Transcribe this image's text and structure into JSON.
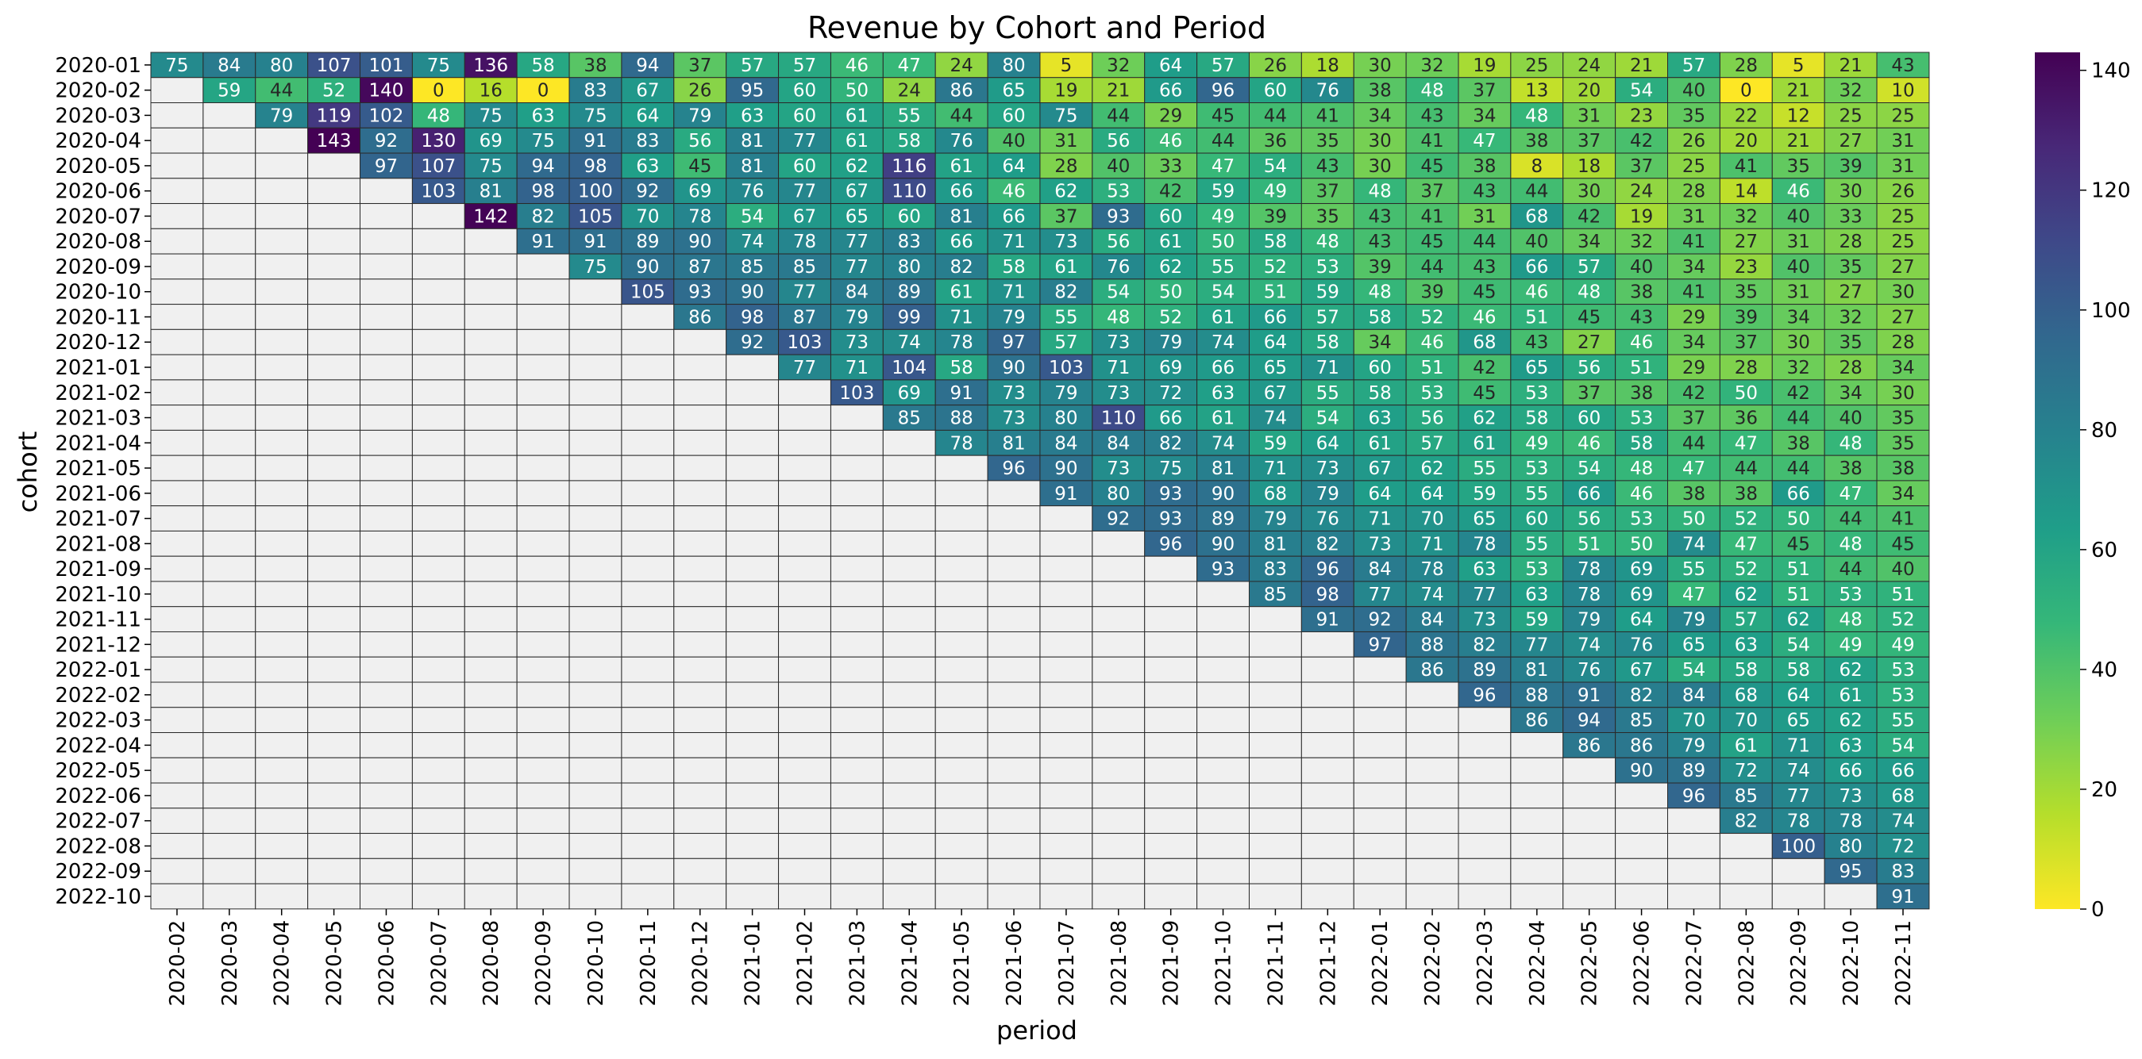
{
  "chart_data": {
    "type": "heatmap",
    "title": "Revenue by Cohort and Period",
    "xlabel": "period",
    "ylabel": "cohort",
    "rows": [
      "2020-01",
      "2020-02",
      "2020-03",
      "2020-04",
      "2020-05",
      "2020-06",
      "2020-07",
      "2020-08",
      "2020-09",
      "2020-10",
      "2020-11",
      "2020-12",
      "2021-01",
      "2021-02",
      "2021-03",
      "2021-04",
      "2021-05",
      "2021-06",
      "2021-07",
      "2021-08",
      "2021-09",
      "2021-10",
      "2021-11",
      "2021-12",
      "2022-01",
      "2022-02",
      "2022-03",
      "2022-04",
      "2022-05",
      "2022-06",
      "2022-07",
      "2022-08",
      "2022-09",
      "2022-10"
    ],
    "columns": [
      "2020-02",
      "2020-03",
      "2020-04",
      "2020-05",
      "2020-06",
      "2020-07",
      "2020-08",
      "2020-09",
      "2020-10",
      "2020-11",
      "2020-12",
      "2021-01",
      "2021-02",
      "2021-03",
      "2021-04",
      "2021-05",
      "2021-06",
      "2021-07",
      "2021-08",
      "2021-09",
      "2021-10",
      "2021-11",
      "2021-12",
      "2022-01",
      "2022-02",
      "2022-03",
      "2022-04",
      "2022-05",
      "2022-06",
      "2022-07",
      "2022-08",
      "2022-09",
      "2022-10",
      "2022-11"
    ],
    "values": [
      [
        75,
        84,
        80,
        107,
        101,
        75,
        136,
        58,
        38,
        94,
        37,
        57,
        57,
        46,
        47,
        24,
        80,
        5,
        32,
        64,
        57,
        26,
        18,
        30,
        32,
        19,
        25,
        24,
        21,
        57,
        28,
        5,
        21,
        43
      ],
      [
        null,
        59,
        44,
        52,
        140,
        0,
        16,
        0,
        83,
        67,
        26,
        95,
        60,
        50,
        24,
        86,
        65,
        19,
        21,
        66,
        96,
        60,
        76,
        38,
        48,
        37,
        13,
        20,
        54,
        40,
        0,
        21,
        32,
        10
      ],
      [
        null,
        null,
        79,
        119,
        102,
        48,
        75,
        63,
        75,
        64,
        79,
        63,
        60,
        61,
        55,
        44,
        60,
        75,
        44,
        29,
        45,
        44,
        41,
        34,
        43,
        34,
        48,
        31,
        23,
        35,
        22,
        12,
        25,
        25
      ],
      [
        null,
        null,
        null,
        143,
        92,
        130,
        69,
        75,
        91,
        83,
        56,
        81,
        77,
        61,
        58,
        76,
        40,
        31,
        56,
        46,
        44,
        36,
        35,
        30,
        41,
        47,
        38,
        37,
        42,
        26,
        20,
        21,
        27,
        31
      ],
      [
        null,
        null,
        null,
        null,
        97,
        107,
        75,
        94,
        98,
        63,
        45,
        81,
        60,
        62,
        116,
        61,
        64,
        28,
        40,
        33,
        47,
        54,
        43,
        30,
        45,
        38,
        8,
        18,
        37,
        25,
        41,
        35,
        39,
        31
      ],
      [
        null,
        null,
        null,
        null,
        null,
        103,
        81,
        98,
        100,
        92,
        69,
        76,
        77,
        67,
        110,
        66,
        46,
        62,
        53,
        42,
        59,
        49,
        37,
        48,
        37,
        43,
        44,
        30,
        24,
        28,
        14,
        46,
        30,
        26
      ],
      [
        null,
        null,
        null,
        null,
        null,
        null,
        142,
        82,
        105,
        70,
        78,
        54,
        67,
        65,
        60,
        81,
        66,
        37,
        93,
        60,
        49,
        39,
        35,
        43,
        41,
        31,
        68,
        42,
        19,
        31,
        32,
        40,
        33,
        25
      ],
      [
        null,
        null,
        null,
        null,
        null,
        null,
        null,
        91,
        91,
        89,
        90,
        74,
        78,
        77,
        83,
        66,
        71,
        73,
        56,
        61,
        50,
        58,
        48,
        43,
        45,
        44,
        40,
        34,
        32,
        41,
        27,
        31,
        28,
        25
      ],
      [
        null,
        null,
        null,
        null,
        null,
        null,
        null,
        null,
        75,
        90,
        87,
        85,
        85,
        77,
        80,
        82,
        58,
        61,
        76,
        62,
        55,
        52,
        53,
        39,
        44,
        43,
        66,
        57,
        40,
        34,
        23,
        40,
        35,
        27
      ],
      [
        null,
        null,
        null,
        null,
        null,
        null,
        null,
        null,
        null,
        105,
        93,
        90,
        77,
        84,
        89,
        61,
        71,
        82,
        54,
        50,
        54,
        51,
        59,
        48,
        39,
        45,
        46,
        48,
        38,
        41,
        35,
        31,
        27,
        30
      ],
      [
        null,
        null,
        null,
        null,
        null,
        null,
        null,
        null,
        null,
        null,
        86,
        98,
        87,
        79,
        99,
        71,
        79,
        55,
        48,
        52,
        61,
        66,
        57,
        58,
        52,
        46,
        51,
        45,
        43,
        29,
        39,
        34,
        32,
        27
      ],
      [
        null,
        null,
        null,
        null,
        null,
        null,
        null,
        null,
        null,
        null,
        null,
        92,
        103,
        73,
        74,
        78,
        97,
        57,
        73,
        79,
        74,
        64,
        58,
        34,
        46,
        68,
        43,
        27,
        46,
        34,
        37,
        30,
        35,
        28
      ],
      [
        null,
        null,
        null,
        null,
        null,
        null,
        null,
        null,
        null,
        null,
        null,
        null,
        77,
        71,
        104,
        58,
        90,
        103,
        71,
        69,
        66,
        65,
        71,
        60,
        51,
        42,
        65,
        56,
        51,
        29,
        28,
        32,
        28,
        34
      ],
      [
        null,
        null,
        null,
        null,
        null,
        null,
        null,
        null,
        null,
        null,
        null,
        null,
        null,
        103,
        69,
        91,
        73,
        79,
        73,
        72,
        63,
        67,
        55,
        58,
        53,
        45,
        53,
        37,
        38,
        42,
        50,
        42,
        34,
        30
      ],
      [
        null,
        null,
        null,
        null,
        null,
        null,
        null,
        null,
        null,
        null,
        null,
        null,
        null,
        null,
        85,
        88,
        73,
        80,
        110,
        66,
        61,
        74,
        54,
        63,
        56,
        62,
        58,
        60,
        53,
        37,
        36,
        44,
        40,
        35
      ],
      [
        null,
        null,
        null,
        null,
        null,
        null,
        null,
        null,
        null,
        null,
        null,
        null,
        null,
        null,
        null,
        78,
        81,
        84,
        84,
        82,
        74,
        59,
        64,
        61,
        57,
        61,
        49,
        46,
        58,
        44,
        47,
        38,
        48,
        35
      ],
      [
        null,
        null,
        null,
        null,
        null,
        null,
        null,
        null,
        null,
        null,
        null,
        null,
        null,
        null,
        null,
        null,
        96,
        90,
        73,
        75,
        81,
        71,
        73,
        67,
        62,
        55,
        53,
        54,
        48,
        47,
        44,
        44,
        38,
        38
      ],
      [
        null,
        null,
        null,
        null,
        null,
        null,
        null,
        null,
        null,
        null,
        null,
        null,
        null,
        null,
        null,
        null,
        null,
        91,
        80,
        93,
        90,
        68,
        79,
        64,
        64,
        59,
        55,
        66,
        46,
        38,
        38,
        66,
        47,
        34
      ],
      [
        null,
        null,
        null,
        null,
        null,
        null,
        null,
        null,
        null,
        null,
        null,
        null,
        null,
        null,
        null,
        null,
        null,
        null,
        92,
        93,
        89,
        79,
        76,
        71,
        70,
        65,
        60,
        56,
        53,
        50,
        52,
        50,
        44,
        41
      ],
      [
        null,
        null,
        null,
        null,
        null,
        null,
        null,
        null,
        null,
        null,
        null,
        null,
        null,
        null,
        null,
        null,
        null,
        null,
        null,
        96,
        90,
        81,
        82,
        73,
        71,
        78,
        55,
        51,
        50,
        74,
        47,
        45,
        48,
        45
      ],
      [
        null,
        null,
        null,
        null,
        null,
        null,
        null,
        null,
        null,
        null,
        null,
        null,
        null,
        null,
        null,
        null,
        null,
        null,
        null,
        null,
        93,
        83,
        96,
        84,
        78,
        63,
        53,
        78,
        69,
        55,
        52,
        51,
        44,
        40
      ],
      [
        null,
        null,
        null,
        null,
        null,
        null,
        null,
        null,
        null,
        null,
        null,
        null,
        null,
        null,
        null,
        null,
        null,
        null,
        null,
        null,
        null,
        85,
        98,
        77,
        74,
        77,
        63,
        78,
        69,
        47,
        62,
        51,
        53,
        51
      ],
      [
        null,
        null,
        null,
        null,
        null,
        null,
        null,
        null,
        null,
        null,
        null,
        null,
        null,
        null,
        null,
        null,
        null,
        null,
        null,
        null,
        null,
        null,
        91,
        92,
        84,
        73,
        59,
        79,
        64,
        79,
        57,
        62,
        48,
        52
      ],
      [
        null,
        null,
        null,
        null,
        null,
        null,
        null,
        null,
        null,
        null,
        null,
        null,
        null,
        null,
        null,
        null,
        null,
        null,
        null,
        null,
        null,
        null,
        null,
        97,
        88,
        82,
        77,
        74,
        76,
        65,
        63,
        54,
        49,
        49
      ],
      [
        null,
        null,
        null,
        null,
        null,
        null,
        null,
        null,
        null,
        null,
        null,
        null,
        null,
        null,
        null,
        null,
        null,
        null,
        null,
        null,
        null,
        null,
        null,
        null,
        86,
        89,
        81,
        76,
        67,
        54,
        58,
        58,
        62,
        53
      ],
      [
        null,
        null,
        null,
        null,
        null,
        null,
        null,
        null,
        null,
        null,
        null,
        null,
        null,
        null,
        null,
        null,
        null,
        null,
        null,
        null,
        null,
        null,
        null,
        null,
        null,
        96,
        88,
        91,
        82,
        84,
        68,
        64,
        61,
        53
      ],
      [
        null,
        null,
        null,
        null,
        null,
        null,
        null,
        null,
        null,
        null,
        null,
        null,
        null,
        null,
        null,
        null,
        null,
        null,
        null,
        null,
        null,
        null,
        null,
        null,
        null,
        null,
        86,
        94,
        85,
        70,
        70,
        65,
        62,
        55
      ],
      [
        null,
        null,
        null,
        null,
        null,
        null,
        null,
        null,
        null,
        null,
        null,
        null,
        null,
        null,
        null,
        null,
        null,
        null,
        null,
        null,
        null,
        null,
        null,
        null,
        null,
        null,
        null,
        86,
        86,
        79,
        61,
        71,
        63,
        54
      ],
      [
        null,
        null,
        null,
        null,
        null,
        null,
        null,
        null,
        null,
        null,
        null,
        null,
        null,
        null,
        null,
        null,
        null,
        null,
        null,
        null,
        null,
        null,
        null,
        null,
        null,
        null,
        null,
        null,
        90,
        89,
        72,
        74,
        66,
        66
      ],
      [
        null,
        null,
        null,
        null,
        null,
        null,
        null,
        null,
        null,
        null,
        null,
        null,
        null,
        null,
        null,
        null,
        null,
        null,
        null,
        null,
        null,
        null,
        null,
        null,
        null,
        null,
        null,
        null,
        null,
        96,
        85,
        77,
        73,
        68
      ],
      [
        null,
        null,
        null,
        null,
        null,
        null,
        null,
        null,
        null,
        null,
        null,
        null,
        null,
        null,
        null,
        null,
        null,
        null,
        null,
        null,
        null,
        null,
        null,
        null,
        null,
        null,
        null,
        null,
        null,
        null,
        82,
        78,
        78,
        74
      ],
      [
        null,
        null,
        null,
        null,
        null,
        null,
        null,
        null,
        null,
        null,
        null,
        null,
        null,
        null,
        null,
        null,
        null,
        null,
        null,
        null,
        null,
        null,
        null,
        null,
        null,
        null,
        null,
        null,
        null,
        null,
        null,
        100,
        80,
        72
      ],
      [
        null,
        null,
        null,
        null,
        null,
        null,
        null,
        null,
        null,
        null,
        null,
        null,
        null,
        null,
        null,
        null,
        null,
        null,
        null,
        null,
        null,
        null,
        null,
        null,
        null,
        null,
        null,
        null,
        null,
        null,
        null,
        null,
        95,
        83
      ],
      [
        null,
        null,
        null,
        null,
        null,
        null,
        null,
        null,
        null,
        null,
        null,
        null,
        null,
        null,
        null,
        null,
        null,
        null,
        null,
        null,
        null,
        null,
        null,
        null,
        null,
        null,
        null,
        null,
        null,
        null,
        null,
        null,
        null,
        91
      ]
    ],
    "colormap": "viridis_r",
    "vmin": 0,
    "vmax": 143,
    "colorbar_ticks": [
      0,
      20,
      40,
      60,
      80,
      100,
      120,
      140
    ],
    "missing_color": "#f0f0f0",
    "grid": true
  }
}
